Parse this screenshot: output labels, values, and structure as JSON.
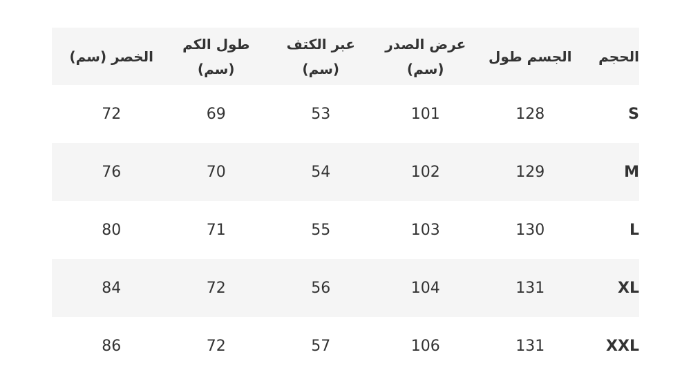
{
  "headers": [
    "الحجم",
    "الجسم طول",
    "عرض الصدر (سم)",
    "عبر الكتف (سم)",
    "طول الكم (سم)",
    "الخصر (سم)"
  ],
  "rows": [
    [
      "S",
      "128",
      "101",
      "53",
      "69",
      "72"
    ],
    [
      "M",
      "129",
      "102",
      "54",
      "70",
      "76"
    ],
    [
      "L",
      "130",
      "103",
      "55",
      "71",
      "80"
    ],
    [
      "XL",
      "131",
      "104",
      "56",
      "72",
      "84"
    ],
    [
      "XXL",
      "131",
      "106",
      "57",
      "72",
      "86"
    ]
  ],
  "colors": {
    "header_bg": "#f5f5f5",
    "alt_row_bg": "#f5f5f5",
    "text": "#333333"
  }
}
